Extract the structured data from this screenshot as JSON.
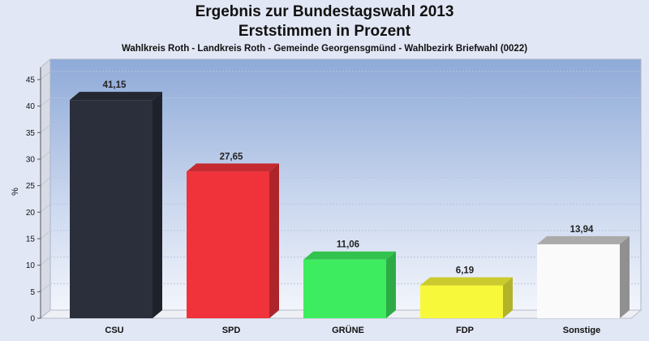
{
  "chart_data": {
    "type": "bar",
    "title": "Ergebnis zur Bundestagswahl 2013",
    "subtitle": "Erststimmen in Prozent",
    "caption": "Wahlkreis Roth - Landkreis Roth - Gemeinde Georgensgmünd - Wahlbezirk Briefwahl (0022)",
    "ylabel": "%",
    "ylim": [
      0,
      45
    ],
    "yticks": [
      0,
      5,
      10,
      15,
      20,
      25,
      30,
      35,
      40,
      45
    ],
    "categories": [
      "CSU",
      "SPD",
      "GRÜNE",
      "FDP",
      "Sonstige"
    ],
    "values": [
      41.15,
      27.65,
      11.06,
      6.19,
      13.94
    ],
    "value_labels": [
      "41,15",
      "27,65",
      "11,06",
      "6,19",
      "13,94"
    ],
    "colors": [
      "#2b2f3b",
      "#f0333a",
      "#3ded5f",
      "#f8f83a",
      "#fafafa"
    ],
    "grid": true
  }
}
